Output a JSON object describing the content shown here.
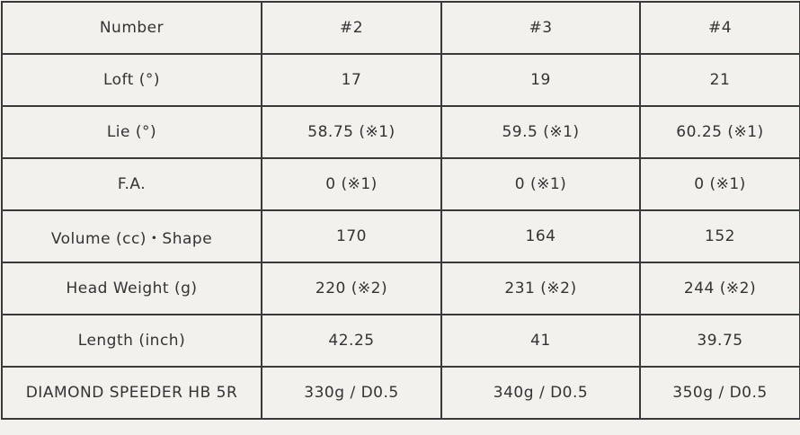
{
  "table": {
    "rows": [
      [
        "Number",
        "#2",
        "#3",
        "#4"
      ],
      [
        "Loft (°)",
        "17",
        "19",
        "21"
      ],
      [
        "Lie (°)",
        "58.75 (※1)",
        "59.5 (※1)",
        "60.25 (※1)"
      ],
      [
        "F.A.",
        "0 (※1)",
        "0 (※1)",
        "0 (※1)"
      ],
      [
        "Volume (cc)・Shape",
        "170",
        "164",
        "152"
      ],
      [
        "Head Weight (g)",
        "220 (※2)",
        "231 (※2)",
        "244 (※2)"
      ],
      [
        "Length (inch)",
        "42.25",
        "41",
        "39.75"
      ],
      [
        "DIAMOND SPEEDER HB 5R",
        "330g / D0.5",
        "340g / D0.5",
        "350g / D0.5"
      ]
    ]
  }
}
